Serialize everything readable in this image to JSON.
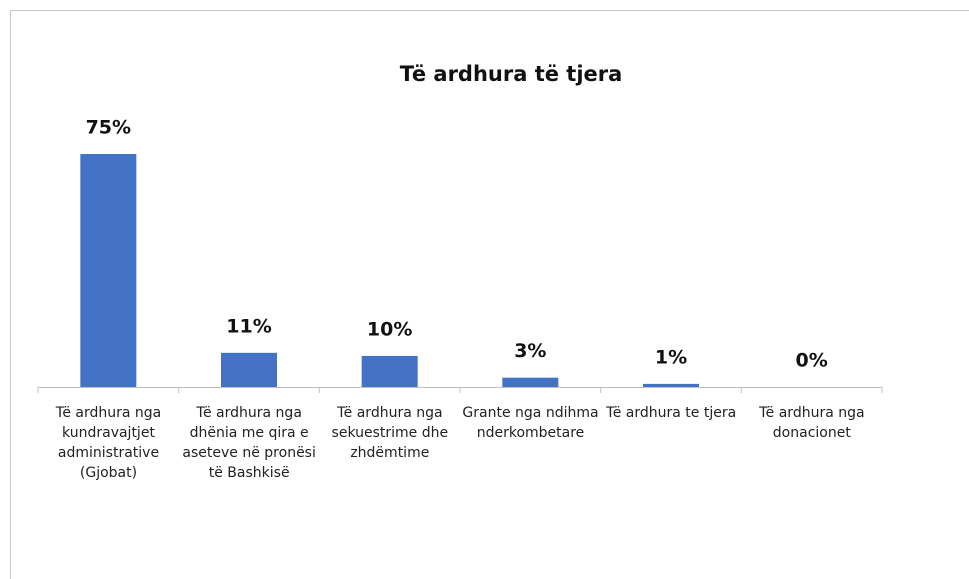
{
  "chart_data": {
    "type": "bar",
    "title": "Të ardhura të tjera",
    "categories": [
      "Të ardhura nga kundravajtjet administrative (Gjobat)",
      "Të ardhura nga dhënia me qira e aseteve në pronësi të Bashkisë",
      "Të ardhura nga sekuestrime dhe zhdëmtime",
      "Grante nga ndihma nderkombetare",
      "Të ardhura te tjera",
      "Të ardhura nga donacionet"
    ],
    "values": [
      75,
      11,
      10,
      3,
      1,
      0
    ],
    "value_labels": [
      "75%",
      "11%",
      "10%",
      "3%",
      "1%",
      "0%"
    ],
    "color": "#4472c4"
  }
}
